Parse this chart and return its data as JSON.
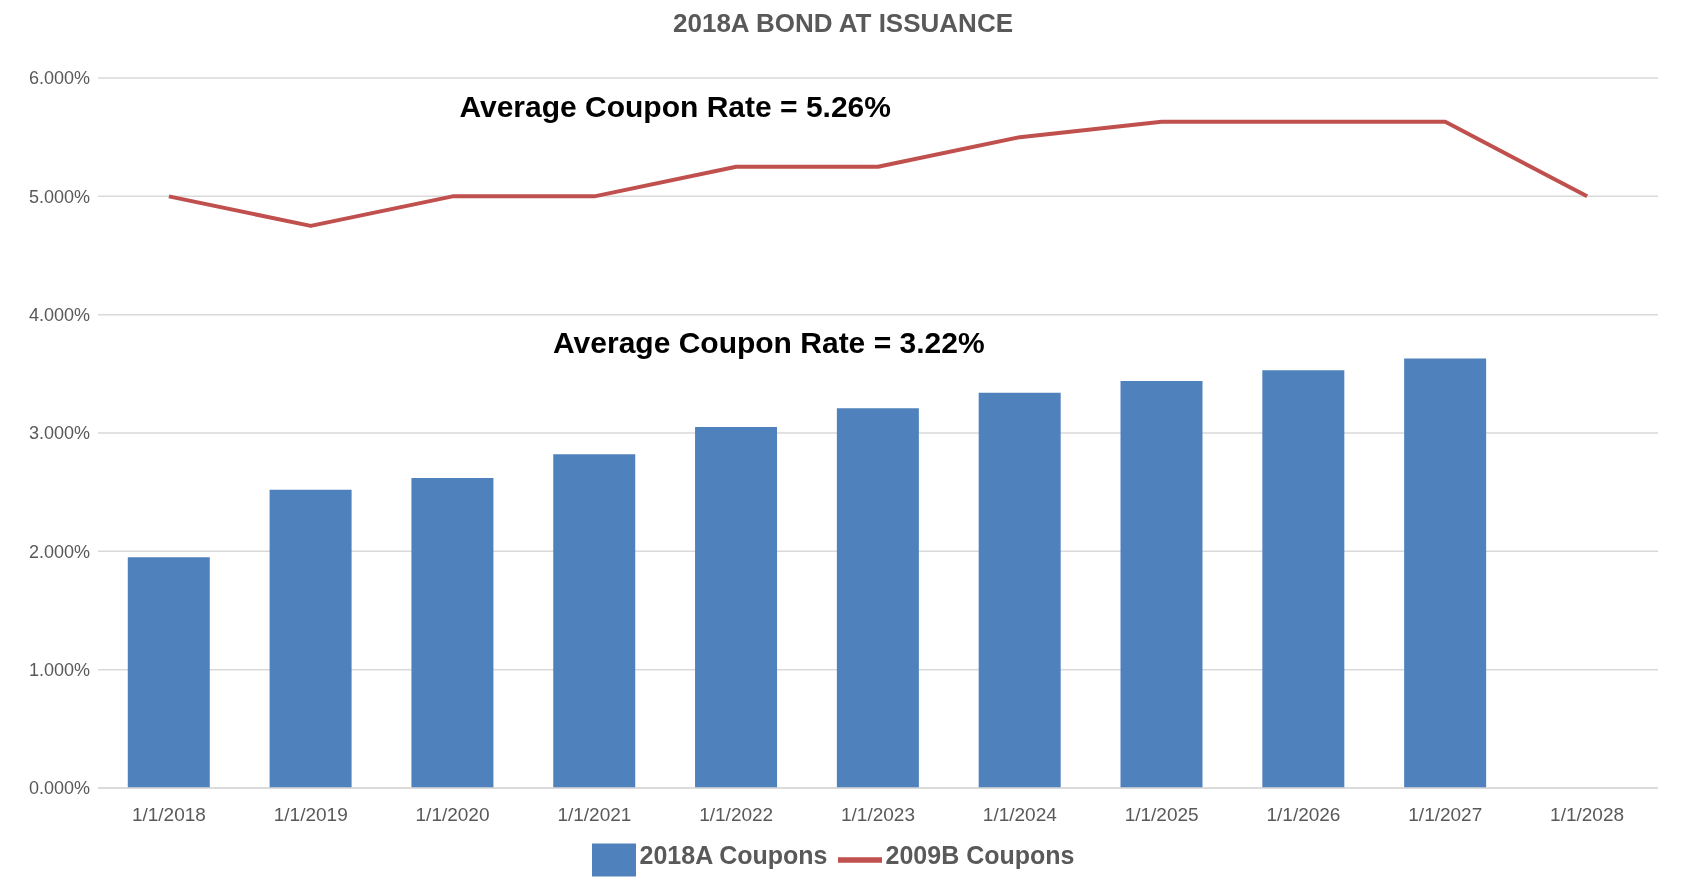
{
  "chart_data": {
    "type": "bar",
    "title": "2018A BOND AT ISSUANCE",
    "categories": [
      "1/1/2018",
      "1/1/2019",
      "1/1/2020",
      "1/1/2021",
      "1/1/2022",
      "1/1/2023",
      "1/1/2024",
      "1/1/2025",
      "1/1/2026",
      "1/1/2027",
      "1/1/2028"
    ],
    "series": [
      {
        "name": "2018A Coupons",
        "color": "#4f81bd",
        "values": [
          1.95,
          2.52,
          2.62,
          2.82,
          3.05,
          3.21,
          3.34,
          3.44,
          3.53,
          3.63,
          null
        ]
      },
      {
        "name": "2009B Coupons",
        "type": "line",
        "color": "#c0504d",
        "values": [
          5.0,
          4.75,
          5.0,
          5.0,
          5.25,
          5.25,
          5.5,
          5.63,
          5.63,
          5.63,
          5.0
        ]
      }
    ],
    "ylim": [
      0,
      6
    ],
    "yticks": [
      {
        "value": 0,
        "label": "0.000%"
      },
      {
        "value": 1,
        "label": "1.000%"
      },
      {
        "value": 2,
        "label": "2.000%"
      },
      {
        "value": 3,
        "label": "3.000%"
      },
      {
        "value": 4,
        "label": "4.000%"
      },
      {
        "value": 5,
        "label": "5.000%"
      },
      {
        "value": 6,
        "label": "6.000%"
      }
    ],
    "annotations": [
      "Average Coupon Rate = 5.26%",
      "Average Coupon Rate = 3.22%"
    ],
    "grid": "y",
    "legend": "bottom",
    "marker": "none",
    "line_style": "solid"
  }
}
